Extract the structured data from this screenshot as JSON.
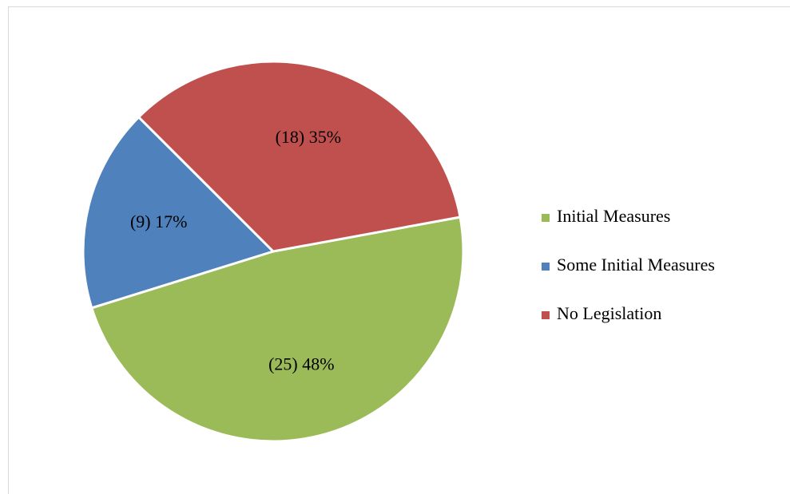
{
  "chart_data": {
    "type": "pie",
    "categories": [
      "Initial Measures",
      "Some Initial Measures",
      "No Legislation"
    ],
    "values": [
      25,
      9,
      18
    ],
    "value_labels": [
      "(25) 48%",
      "(9) 17%",
      "(18) 35%"
    ],
    "colors": [
      "#9bbb59",
      "#4f81bd",
      "#c0504d"
    ],
    "legend": "right"
  }
}
